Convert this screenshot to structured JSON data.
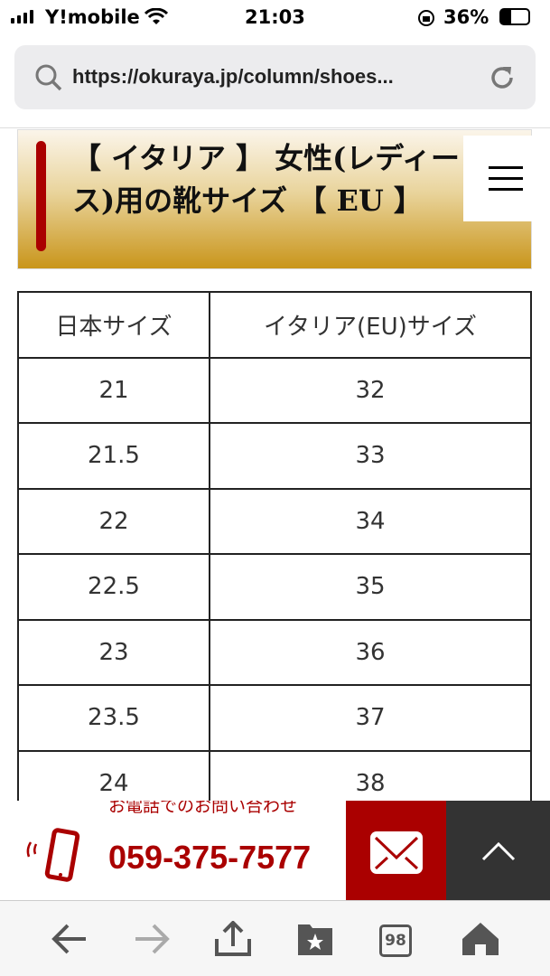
{
  "status_bar": {
    "carrier": "Y!mobile",
    "time": "21:03",
    "battery": "36%"
  },
  "browser": {
    "url": "https://okuraya.jp/column/shoes...",
    "tab_count": "98"
  },
  "heading": {
    "title": "【 イタリア 】 女性(レディース)用の靴サイズ 【 EU 】"
  },
  "table": {
    "headers": [
      "日本サイズ",
      "イタリア(EU)サイズ"
    ],
    "rows": [
      [
        "21",
        "32"
      ],
      [
        "21.5",
        "33"
      ],
      [
        "22",
        "34"
      ],
      [
        "22.5",
        "35"
      ],
      [
        "23",
        "36"
      ],
      [
        "23.5",
        "37"
      ],
      [
        "24",
        "38"
      ]
    ]
  },
  "contact": {
    "label": "お電話でのお問い合わせ",
    "phone": "059-375-7577"
  },
  "colors": {
    "accent": "#aa0000",
    "heading_gold": "#c9951b",
    "dark": "#333333"
  }
}
